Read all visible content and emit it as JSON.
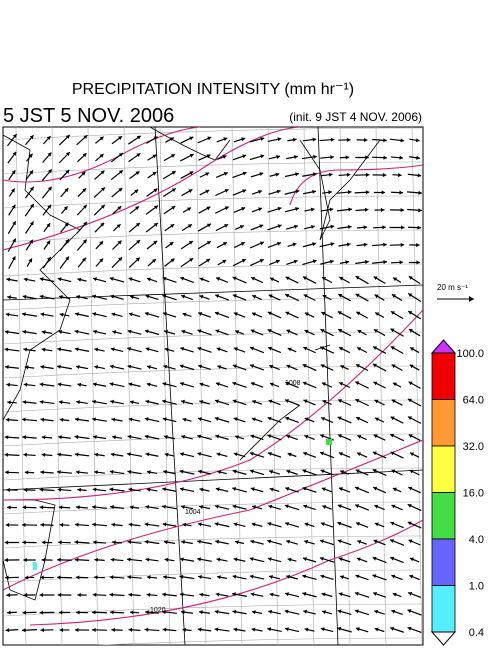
{
  "header": {
    "title": "PRECIPITATION INTENSITY (mm hr⁻¹)",
    "valid_time": "5 JST 5 NOV. 2006",
    "init_time": "(init. 9 JST 4 NOV. 2006)"
  },
  "wind_scale": {
    "label": "20 m s⁻¹"
  },
  "colorbar": {
    "levels": [
      {
        "label": "100.0",
        "color": "#ee0000"
      },
      {
        "label": "64.0",
        "color": "#ff9933"
      },
      {
        "label": "32.0",
        "color": "#ffff44"
      },
      {
        "label": "16.0",
        "color": "#44dd44"
      },
      {
        "label": "4.0",
        "color": "#6666ff"
      },
      {
        "label": "1.0",
        "color": "#55eeff"
      },
      {
        "label": "0.4",
        "color": "#ffffff"
      }
    ],
    "top_color": "#cc33ff"
  },
  "isobars": [
    {
      "label": "1008"
    },
    {
      "label": "1004"
    },
    {
      "label": "1020"
    }
  ]
}
